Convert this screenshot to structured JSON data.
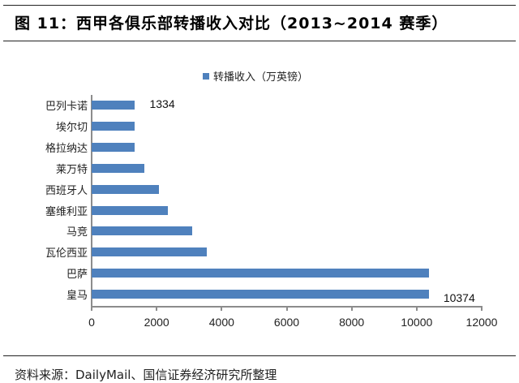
{
  "header": {
    "title": "图  11：西甲各俱乐部转播收入对比（2013~2014 赛季）"
  },
  "footer": {
    "source": "资料来源：DailyMail、国信证券经济研究所整理"
  },
  "chart_data": {
    "type": "bar",
    "orientation": "horizontal",
    "title": "西甲各俱乐部转播收入对比（2013~2014 赛季）",
    "figure_number": "图 11",
    "xlabel": "",
    "ylabel": "",
    "legend": {
      "position": "top",
      "entries": [
        "转播收入（万英镑）"
      ]
    },
    "series": [
      {
        "name": "转播收入（万英镑）",
        "color": "#4f81bd",
        "values": [
          1334,
          1334,
          1334,
          1620,
          2070,
          2340,
          3090,
          3540,
          10374,
          10374
        ]
      }
    ],
    "categories": [
      "巴列卡诺",
      "埃尔切",
      "格拉纳达",
      "莱万特",
      "西班牙人",
      "塞维利亚",
      "马竞",
      "瓦伦西亚",
      "巴萨",
      "皇马"
    ],
    "data_labels": [
      {
        "category": "巴列卡诺",
        "text": "1334"
      },
      {
        "category": "皇马",
        "text": "10374"
      }
    ],
    "xlim": [
      0,
      12000
    ],
    "x_ticks": [
      "0",
      "2000",
      "4000",
      "6000",
      "8000",
      "10000",
      "12000"
    ],
    "grid": false,
    "source": "资料来源：DailyMail、国信证券经济研究所整理"
  }
}
